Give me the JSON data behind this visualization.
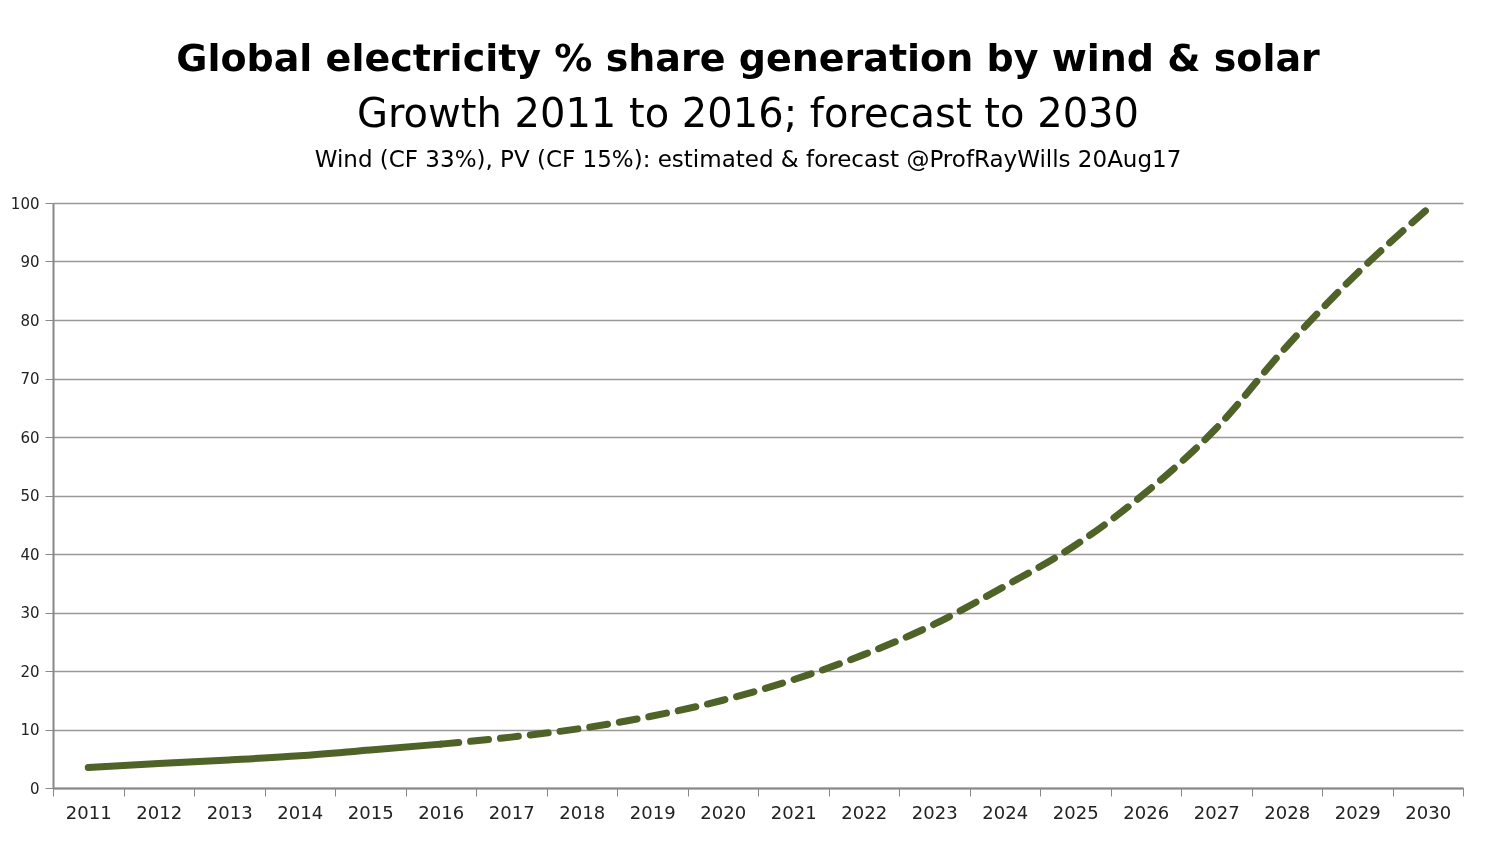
{
  "chart_data": {
    "type": "line",
    "title": "Global electricity % share generation by wind & solar",
    "subtitle": "Growth 2011 to 2016; forecast to 2030",
    "annotations": [
      "Wind (CF 33%), PV (CF 15%): estimated & forecast @ProfRayWills 20Aug17"
    ],
    "categories": [
      "2011",
      "2012",
      "2013",
      "2014",
      "2015",
      "2016",
      "2017",
      "2018",
      "2019",
      "2020",
      "2021",
      "2022",
      "2023",
      "2024",
      "2025",
      "2026",
      "2027",
      "2028",
      "2029",
      "2030"
    ],
    "series": [
      {
        "color": "#4f6228",
        "line_style": "solid",
        "values": [
          3.5,
          4.2,
          4.8,
          5.5,
          6.5,
          7.5,
          null,
          null,
          null,
          null,
          null,
          null,
          null,
          null,
          null,
          null,
          null,
          null,
          null,
          null
        ]
      },
      {
        "color": "#4f6228",
        "line_style": "dashed",
        "values": [
          null,
          null,
          null,
          null,
          null,
          7.5,
          8.7,
          10.2,
          12.3,
          15,
          18.5,
          22.8,
          28,
          34.5,
          41.5,
          50.5,
          61.5,
          75.5,
          88,
          99
        ]
      }
    ],
    "ylim": [
      0,
      100
    ],
    "yticks": [
      0,
      10,
      20,
      30,
      40,
      50,
      60,
      70,
      80,
      90,
      100
    ],
    "grid": "y",
    "marker": "none"
  }
}
